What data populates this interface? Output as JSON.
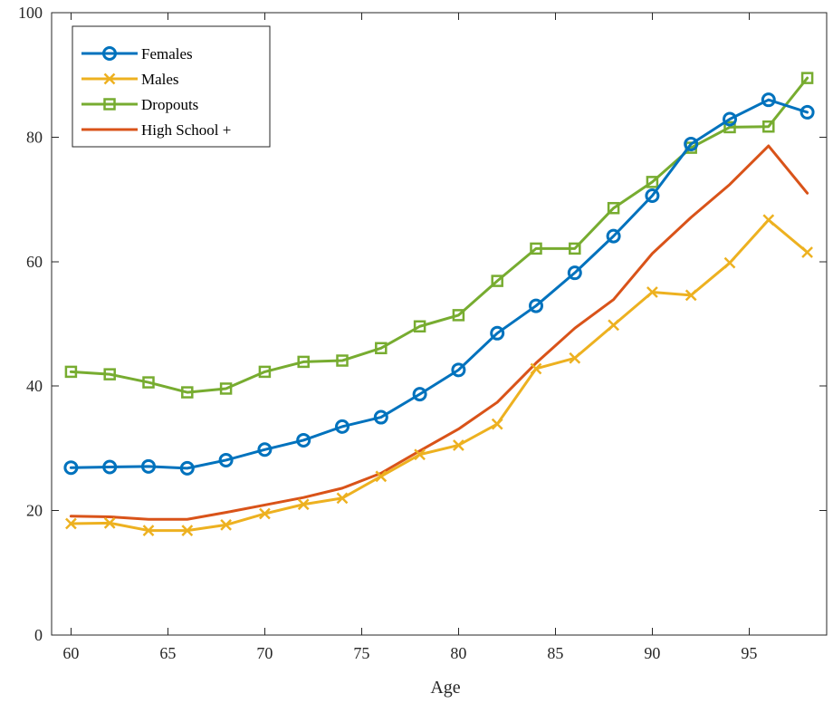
{
  "chart_data": {
    "type": "line",
    "title": "",
    "xlabel": "Age",
    "ylabel": "",
    "xlim": [
      59,
      99
    ],
    "ylim": [
      0,
      100
    ],
    "xticks": [
      60,
      65,
      70,
      75,
      80,
      85,
      90,
      95
    ],
    "yticks": [
      0,
      20,
      40,
      60,
      80,
      100
    ],
    "grid": false,
    "legend_position": "top-left",
    "x": [
      60,
      62,
      64,
      66,
      68,
      70,
      72,
      74,
      76,
      78,
      80,
      82,
      84,
      86,
      88,
      90,
      92,
      94,
      96,
      98
    ],
    "series": [
      {
        "name": "Females",
        "color": "#0072BD",
        "marker": "circle",
        "values": [
          26.9,
          27.0,
          27.1,
          26.8,
          28.1,
          29.8,
          31.3,
          33.5,
          35.0,
          38.7,
          42.6,
          48.5,
          52.9,
          58.2,
          64.1,
          70.6,
          78.9,
          82.9,
          86.0,
          84.0
        ]
      },
      {
        "name": "Males",
        "color": "#EDB120",
        "marker": "x",
        "values": [
          17.9,
          18.0,
          16.8,
          16.8,
          17.7,
          19.5,
          21.0,
          22.0,
          25.5,
          29.0,
          30.5,
          33.9,
          42.8,
          44.5,
          49.8,
          55.1,
          54.6,
          59.8,
          66.7,
          61.5
        ]
      },
      {
        "name": "Dropouts",
        "color": "#77AC30",
        "marker": "square",
        "values": [
          42.3,
          41.9,
          40.6,
          39.0,
          39.6,
          42.3,
          43.9,
          44.1,
          46.1,
          49.6,
          51.4,
          56.9,
          62.1,
          62.1,
          68.6,
          72.8,
          78.3,
          81.6,
          81.7,
          89.5
        ]
      },
      {
        "name": "High School +",
        "color": "#D95319",
        "marker": "none",
        "values": [
          19.1,
          19.0,
          18.6,
          18.6,
          19.7,
          20.9,
          22.1,
          23.6,
          26.0,
          29.6,
          33.1,
          37.4,
          43.7,
          49.3,
          53.9,
          61.3,
          67.1,
          72.4,
          78.6,
          71.0
        ]
      }
    ]
  }
}
